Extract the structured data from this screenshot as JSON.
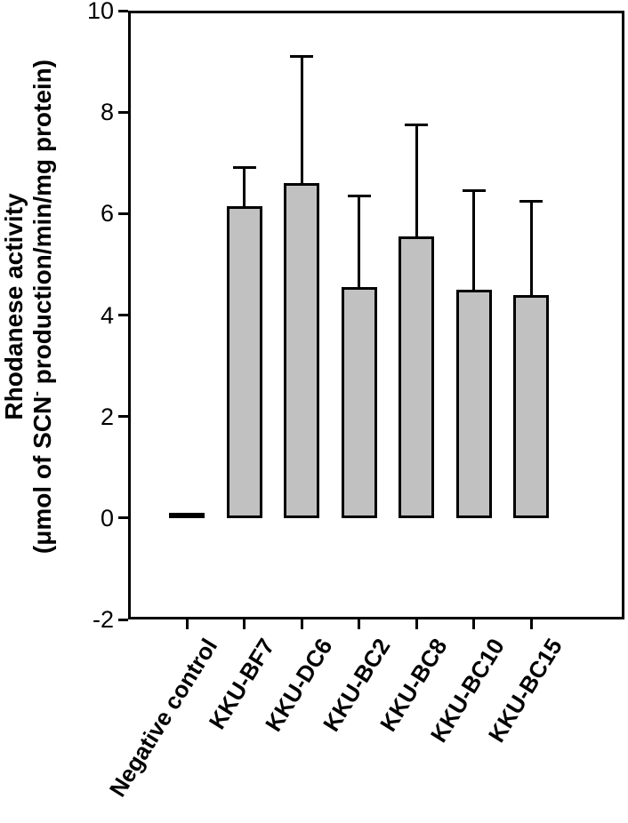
{
  "figure": {
    "background_color": "#ffffff",
    "frame_color": "#000000"
  },
  "axis": {
    "ylabel_line1": "Rhodanese activity",
    "ylabel_line2_pre": "(μmol of SCN",
    "ylabel_line2_sup": "-",
    "ylabel_line2_post": " production/min/mg protein)"
  },
  "chart_data": {
    "type": "bar",
    "title": "",
    "xlabel": "",
    "ylabel": "Rhodanese activity (μmol of SCN⁻ production/min/mg protein)",
    "categories": [
      "Negative control",
      "KKU-BF7",
      "KKU-DC6",
      "KKU-BC2",
      "KKU-BC8",
      "KKU-BC10",
      "KKU-BC15"
    ],
    "values": [
      0.1,
      6.15,
      6.6,
      4.55,
      5.55,
      4.5,
      4.4
    ],
    "errors_upper": [
      0,
      0.75,
      2.5,
      1.8,
      2.2,
      1.95,
      1.85
    ],
    "ylim": [
      -2,
      10
    ],
    "yticks": [
      -2,
      0,
      2,
      4,
      6,
      8,
      10
    ],
    "bar_fill_color": "#c1c1c1",
    "bar_border_color": "#000000",
    "grid": false,
    "legend_position": "none"
  }
}
